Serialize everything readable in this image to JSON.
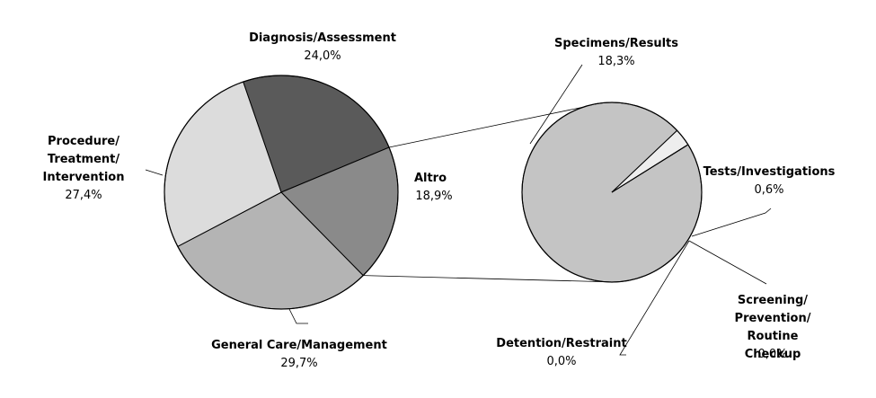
{
  "chart_data": {
    "type": "pie",
    "main_pie": {
      "slices": [
        {
          "label": "Diagnosis/Assessment",
          "value_text": "24,0%",
          "value": 24.0,
          "color": "#5a5a5a"
        },
        {
          "label": "Altro",
          "value_text": "18,9%",
          "value": 18.9,
          "color": "#8a8a8a"
        },
        {
          "label": "General Care/Management",
          "value_text": "29,7%",
          "value": 29.7,
          "color": "#b4b4b4"
        },
        {
          "label": "Procedure/ Treatment/ Intervention",
          "value_text": "27,4%",
          "value": 27.4,
          "color": "#dcdcdc"
        }
      ]
    },
    "secondary_pie": {
      "breakdown_of": "Altro",
      "slices": [
        {
          "label": "Specimens/Results",
          "value_text": "18,3%",
          "value": 18.3,
          "color": "#c4c4c4"
        },
        {
          "label": "Tests/Investigations",
          "value_text": "0,6%",
          "value": 0.6,
          "color": "#eeeeee"
        },
        {
          "label": "Screening/ Prevention/ Routine Checkup",
          "value_text": "0,0%",
          "value": 0.0,
          "color": "#dddddd"
        },
        {
          "label": "Detention/Restraint",
          "value_text": "0,0%",
          "value": 0.0,
          "color": "#dddddd"
        }
      ]
    }
  }
}
